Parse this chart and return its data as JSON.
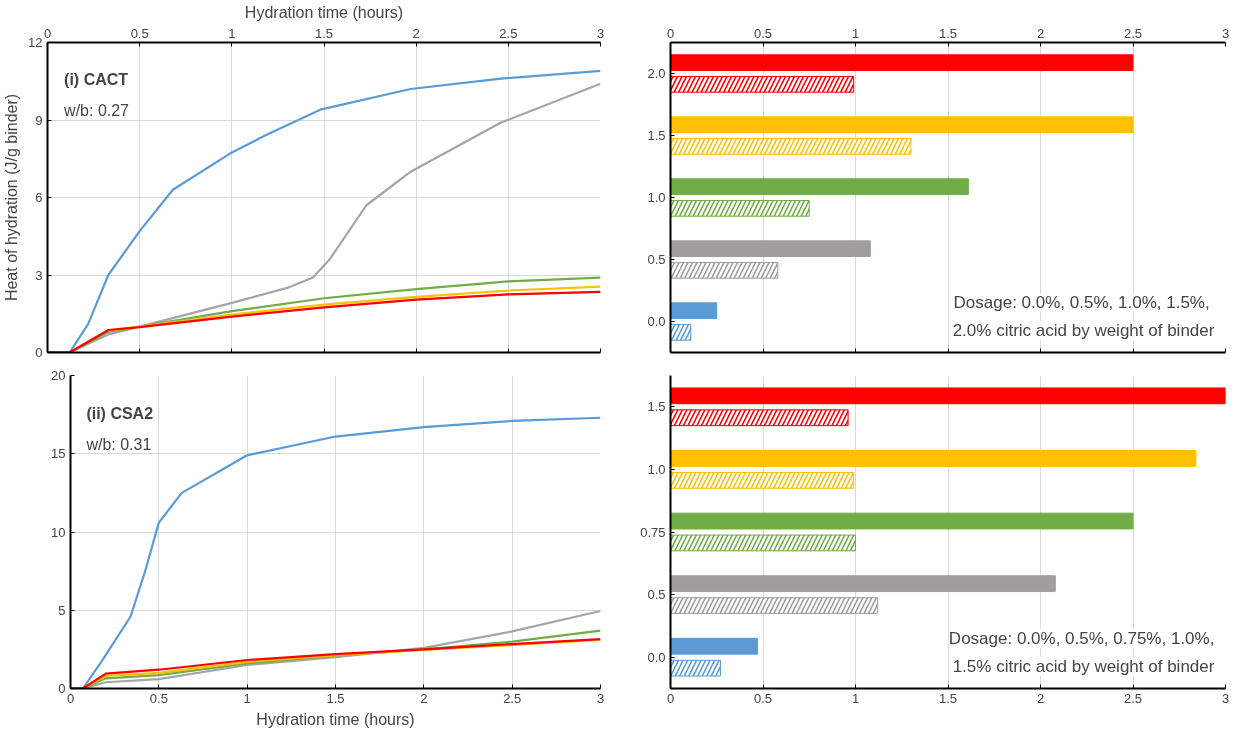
{
  "chart_data": [
    {
      "type": "line",
      "xlim": [
        0,
        3
      ],
      "xticks": [
        0,
        0.5,
        1,
        1.5,
        2,
        2.5,
        3
      ],
      "tick_labels": "y",
      "x2lim": [
        0,
        3
      ],
      "x2ticks": [
        0,
        0.5,
        1,
        1.5,
        2,
        2.5,
        3
      ],
      "x2label": "Hydration time (hours)",
      "ylabel": "Heat of hydration (J/g binder)",
      "ylim": [
        0,
        12
      ],
      "yticks": [
        0,
        3,
        6,
        9,
        12
      ],
      "grid": true,
      "annotations": [
        "(i) CACT",
        "w/b: 0.27"
      ],
      "series": [
        {
          "color": "#5b9bd5",
          "x": [
            0,
            0.12,
            0.22,
            0.33,
            0.5,
            0.68,
            0.99,
            1.18,
            1.48,
            1.97,
            2.46,
            3
          ],
          "values": [
            0,
            0,
            1.1,
            3.0,
            4.7,
            6.3,
            7.7,
            8.4,
            9.4,
            10.2,
            10.6,
            10.9
          ]
        },
        {
          "color": "#a5a5a5",
          "x": [
            0,
            0.12,
            0.33,
            0.5,
            0.99,
            1.3,
            1.44,
            1.53,
            1.73,
            1.97,
            2.46,
            3
          ],
          "values": [
            0,
            0,
            0.7,
            1.0,
            1.9,
            2.5,
            2.9,
            3.6,
            5.7,
            7.0,
            8.9,
            10.4
          ]
        },
        {
          "color": "#70ad47",
          "x": [
            0,
            0.12,
            0.33,
            0.5,
            1,
            1.5,
            2,
            2.5,
            3
          ],
          "values": [
            0,
            0,
            0.8,
            1.0,
            1.6,
            2.1,
            2.45,
            2.75,
            2.9
          ]
        },
        {
          "color": "#ffc000",
          "x": [
            0.33,
            0.5,
            1,
            1.5,
            2,
            2.5,
            3
          ],
          "values": [
            0.85,
            1.0,
            1.47,
            1.85,
            2.15,
            2.4,
            2.55
          ]
        },
        {
          "color": "#ff0000",
          "x": [
            0,
            0.12,
            0.33,
            0.5,
            1,
            1.5,
            2,
            2.5,
            3
          ],
          "values": [
            0,
            0,
            0.87,
            0.98,
            1.39,
            1.75,
            2.05,
            2.25,
            2.35
          ]
        }
      ]
    },
    {
      "type": "bar",
      "orientation": "horizontal",
      "categories": [
        "2.0",
        "1.5",
        "1.0",
        "0.5",
        "0.0"
      ],
      "xlim": [
        0,
        3
      ],
      "xticks": [
        0,
        0.5,
        1,
        1.5,
        2,
        2.5,
        3
      ],
      "tick_labels": "y",
      "x2lim": [
        0,
        3
      ],
      "x2ticks": [
        0,
        0.5,
        1,
        1.5,
        2,
        2.5,
        3
      ],
      "grid": "x",
      "annotations": [
        "Dosage:  0.0%, 0.5%, 1.0%, 1.5%,",
        "2.0% citric acid by weight of binder"
      ],
      "series": [
        {
          "colors": [
            "#ff0000",
            "#ffc000",
            "#70ad47",
            "#a09d9d",
            "#5b9bd5"
          ],
          "values": [
            2.5,
            2.5,
            1.61,
            1.08,
            0.25
          ]
        },
        {
          "colors": [
            "#ff0000",
            "#ffc000",
            "#70ad47",
            "#a09d9d",
            "#5b9bd5"
          ],
          "values": [
            0.99,
            1.3,
            0.75,
            0.58,
            0.11
          ]
        }
      ]
    },
    {
      "type": "line",
      "xlim": [
        0,
        3
      ],
      "xticks": [
        0,
        0.5,
        1,
        1.5,
        2,
        2.5,
        3
      ],
      "xlabel": "Hydration time (hours)",
      "ylim": [
        0,
        20
      ],
      "yticks": [
        0,
        5,
        10,
        15,
        20
      ],
      "grid": true,
      "annotations": [
        "(ii) CSA2",
        "w/b: 0.31"
      ],
      "series": [
        {
          "color": "#5b9bd5",
          "x": [
            0,
            0.07,
            0.18,
            0.34,
            0.42,
            0.5,
            0.63,
            1,
            1.5,
            2,
            2.5,
            3
          ],
          "values": [
            0,
            0,
            1.8,
            4.6,
            7.4,
            10.6,
            12.5,
            14.9,
            16.1,
            16.7,
            17.1,
            17.3
          ]
        },
        {
          "color": "#a5a5a5",
          "x": [
            0,
            0.07,
            0.2,
            0.5,
            1,
            1.5,
            2,
            2.5,
            3
          ],
          "values": [
            0,
            0,
            0.4,
            0.6,
            1.5,
            2.0,
            2.6,
            3.65,
            4.95
          ]
        },
        {
          "color": "#70ad47",
          "x": [
            0,
            0.07,
            0.2,
            0.5,
            1,
            1.5,
            2,
            2.5,
            3
          ],
          "values": [
            0,
            0,
            0.65,
            0.86,
            1.6,
            2.1,
            2.5,
            3.0,
            3.7
          ]
        },
        {
          "color": "#ffc000",
          "x": [
            0,
            0.07,
            0.2,
            0.5,
            1,
            1.5,
            2,
            2.5,
            3
          ],
          "values": [
            0,
            0,
            0.8,
            1.0,
            1.7,
            2.13,
            2.46,
            2.78,
            3.1
          ]
        },
        {
          "color": "#ff0000",
          "x": [
            0,
            0.07,
            0.2,
            0.5,
            1,
            1.5,
            2,
            2.5,
            3
          ],
          "values": [
            0,
            0,
            0.95,
            1.2,
            1.82,
            2.2,
            2.5,
            2.84,
            3.15
          ]
        }
      ]
    },
    {
      "type": "bar",
      "orientation": "horizontal",
      "categories": [
        "1.5",
        "1.0",
        "0.75",
        "0.5",
        "0.0"
      ],
      "xlim": [
        0,
        3
      ],
      "xticks": [
        0,
        0.5,
        1,
        1.5,
        2,
        2.5,
        3
      ],
      "grid": "x",
      "annotations": [
        "Dosage: 0.0%, 0.5%, 0.75%, 1.0%,",
        "1.5% citric acid by weight of binder"
      ],
      "series": [
        {
          "colors": [
            "#ff0000",
            "#ffc000",
            "#70ad47",
            "#a09d9d",
            "#5b9bd5"
          ],
          "values": [
            3.0,
            2.84,
            2.5,
            2.08,
            0.47
          ]
        },
        {
          "colors": [
            "#ff0000",
            "#ffc000",
            "#70ad47",
            "#a09d9d",
            "#5b9bd5"
          ],
          "values": [
            0.96,
            0.99,
            1.0,
            1.12,
            0.27
          ]
        }
      ]
    }
  ]
}
